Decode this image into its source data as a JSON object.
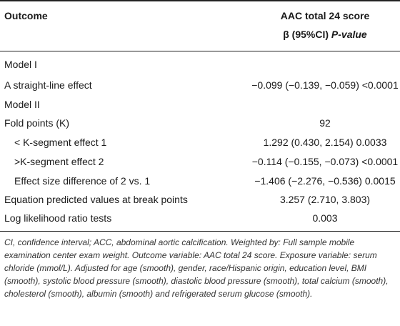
{
  "header": {
    "outcome_label": "Outcome",
    "col_title": "AAC total 24 score",
    "col_sub_prefix": "β (95%CI) ",
    "col_sub_pvalue": "P-value"
  },
  "rows": [
    {
      "label": "Model I",
      "value": ""
    },
    {
      "label": "A straight-line effect",
      "value": "−0.099 (−0.139, −0.059) <0.0001"
    },
    {
      "label": "Model II",
      "value": ""
    },
    {
      "label": "Fold points (K)",
      "value": "92"
    },
    {
      "label": "< K-segment effect 1",
      "value": "1.292 (0.430, 2.154) 0.0033"
    },
    {
      "label": ">K-segment effect 2",
      "value": "−0.114 (−0.155, −0.073) <0.0001"
    },
    {
      "label": "Effect size difference of 2 vs. 1",
      "value": "−1.406 (−2.276, −0.536) 0.0015"
    },
    {
      "label": "Equation predicted values at break points",
      "value": "3.257 (2.710, 3.803)"
    },
    {
      "label": "Log likelihood ratio tests",
      "value": "0.003"
    }
  ],
  "footnote": "CI, confidence interval; ACC, abdominal aortic calcification. Weighted by: Full sample mobile examination center exam weight. Outcome variable: AAC total 24 score. Exposure variable: serum chloride (mmol/L). Adjusted for age (smooth), gender, race/Hispanic origin, education level, BMI (smooth), systolic blood pressure (smooth), diastolic blood pressure (smooth), total calcium (smooth), cholesterol (smooth), albumin (smooth) and refrigerated serum glucose (smooth)."
}
